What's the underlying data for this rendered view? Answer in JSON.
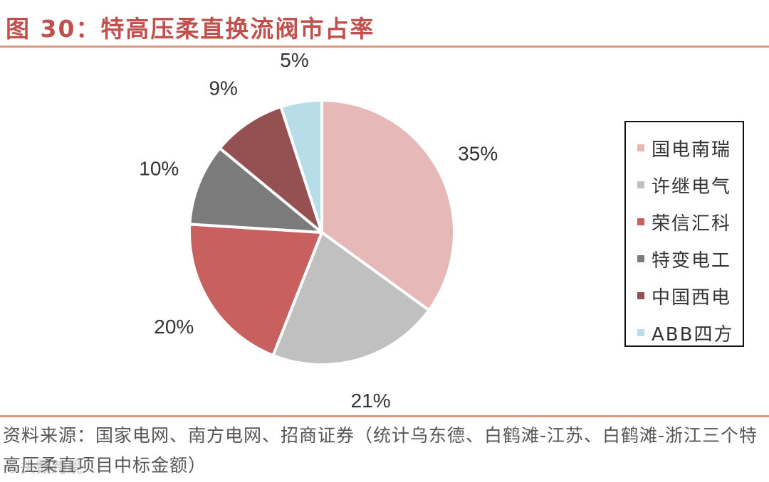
{
  "title": "图 30：特高压柔直换流阀市占率",
  "source_note": "资料来源：国家电网、南方电网、招商证券（统计乌东德、白鹤滩-江苏、白鹤滩-浙江三个特高压柔直项目中标金额）",
  "watermark": "©头数跨境",
  "chart_data": {
    "type": "pie",
    "title": "",
    "categories": [
      "国电南瑞",
      "许继电气",
      "荣信汇科",
      "特变电工",
      "中国西电",
      "ABB四方"
    ],
    "values": [
      35,
      21,
      20,
      10,
      9,
      5
    ],
    "data_labels": [
      "35%",
      "21%",
      "20%",
      "10%",
      "9%",
      "5%"
    ],
    "colors": [
      "#e6b9b8",
      "#c0c0c0",
      "#c86060",
      "#7b7b7b",
      "#955151",
      "#b7dde8"
    ],
    "legend_position": "right",
    "start": "12 o'clock",
    "direction": "clockwise"
  }
}
